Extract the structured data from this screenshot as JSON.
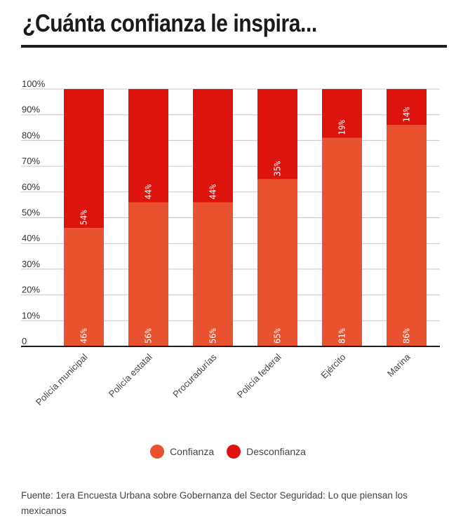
{
  "header": {
    "title": "¿Cuánta confianza le inspira..."
  },
  "chart_data": {
    "type": "bar",
    "stacked": true,
    "categories": [
      "Policía municipal",
      "Policía estatal",
      "Procuradurías",
      "Policía federal",
      "Ejército",
      "Marina"
    ],
    "series": [
      {
        "name": "Confianza",
        "color": "#e8522f",
        "values": [
          46,
          56,
          56,
          65,
          81,
          86
        ],
        "labels": [
          "46%",
          "56%",
          "56%",
          "65%",
          "81%",
          "86%"
        ]
      },
      {
        "name": "Desconfianza",
        "color": "#dd130e",
        "values": [
          54,
          44,
          44,
          35,
          19,
          14
        ],
        "labels": [
          "54%",
          "44%",
          "44%",
          "35%",
          "19%",
          "14%"
        ]
      }
    ],
    "yticks": [
      "0",
      "10%",
      "20%",
      "30%",
      "40%",
      "50%",
      "60%",
      "70%",
      "80%",
      "90%",
      "100%"
    ],
    "ylim": [
      0,
      100
    ],
    "grid": true,
    "legend_position": "bottom"
  },
  "legend": {
    "confianza": "Confianza",
    "desconfianza": "Desconfianza"
  },
  "footer": {
    "source": "Fuente:  1era Encuesta Urbana sobre Gobernanza del Sector Seguridad: Lo que piensan los mexicanos"
  }
}
